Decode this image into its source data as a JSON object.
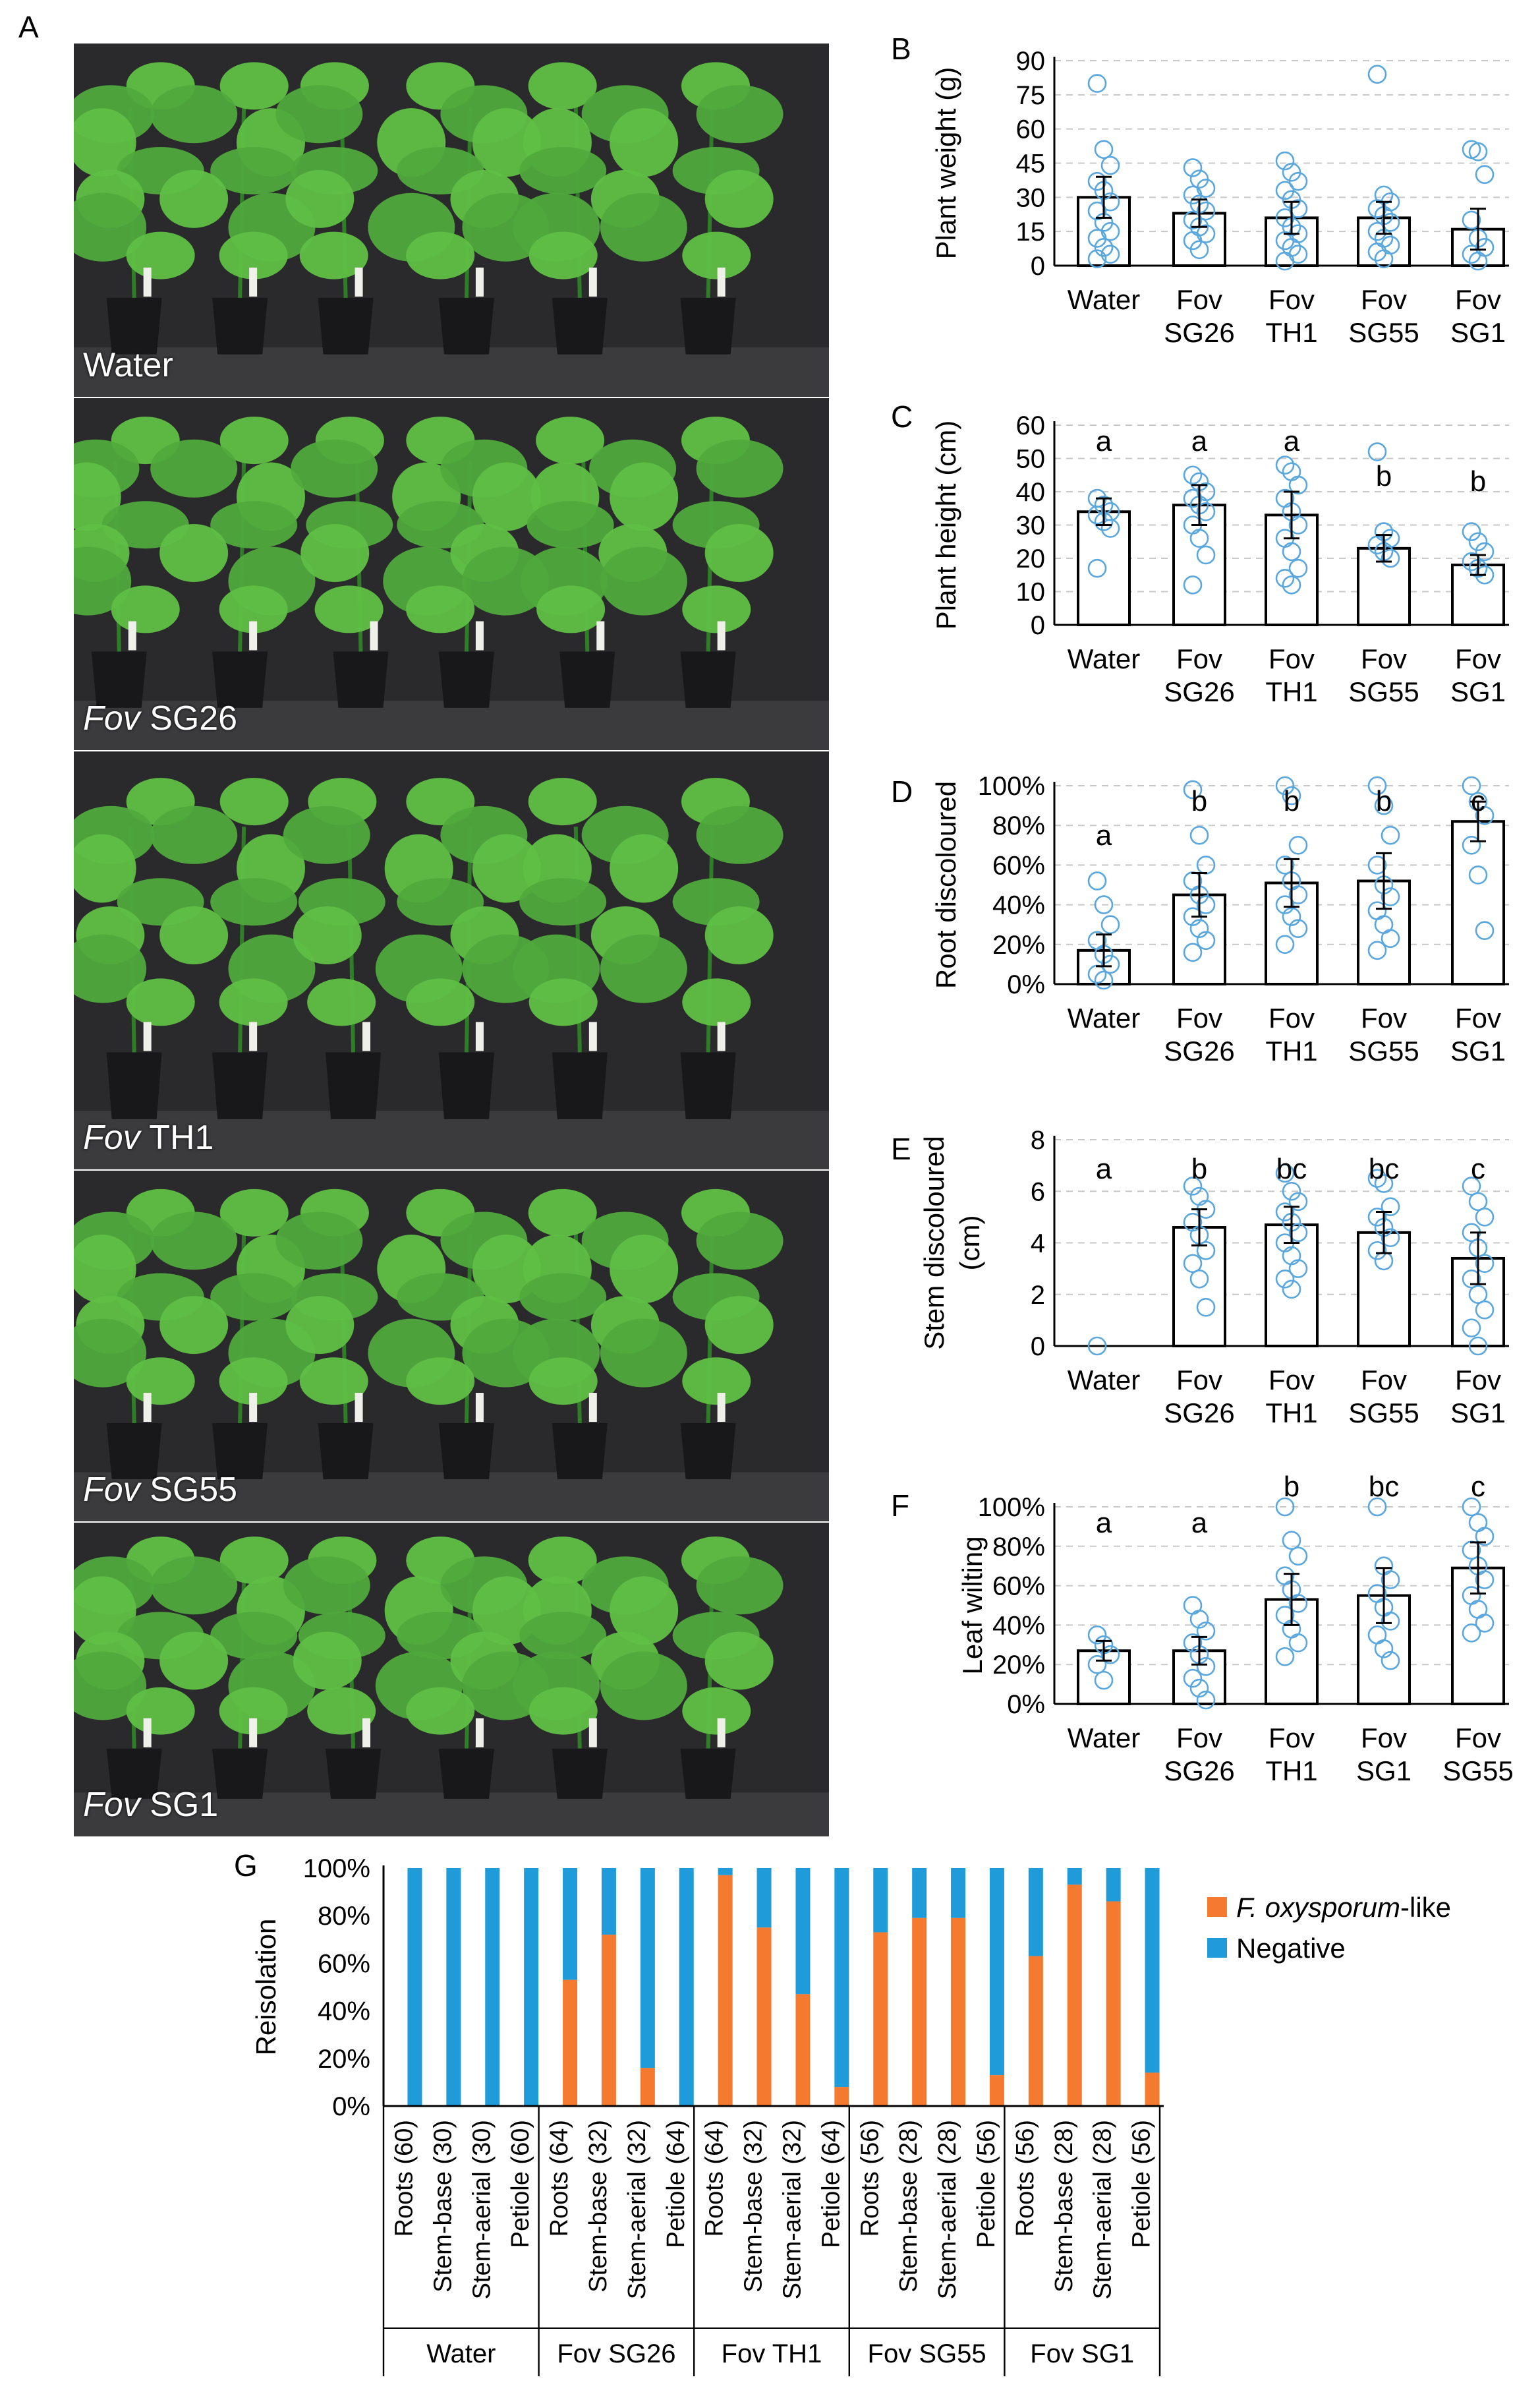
{
  "figure": {
    "panel_a_label": "A",
    "photos": [
      {
        "italic": "",
        "text": "Water"
      },
      {
        "italic": "Fov",
        "text": " SG26"
      },
      {
        "italic": "Fov",
        "text": " TH1"
      },
      {
        "italic": "Fov",
        "text": " SG55"
      },
      {
        "italic": "Fov",
        "text": " SG1"
      }
    ]
  },
  "colors": {
    "marker": "#5aa7de",
    "bar_fill": "#ffffff",
    "bar_edge": "#000000",
    "grid": "#c8c8c8",
    "positive": "#f47a30",
    "negative": "#1f9bd9",
    "photo_bg": "#2a2a2c",
    "plant": "#4fa93c",
    "plant_dark": "#2f7d27",
    "pot": "#18181a",
    "floor": "#dcdcdc"
  },
  "chart_data": [
    {
      "panel": "B",
      "type": "bar",
      "ylabel": "Plant weight (g)",
      "categories": [
        [
          "Water"
        ],
        [
          "Fov",
          "SG26"
        ],
        [
          "Fov",
          "TH1"
        ],
        [
          "Fov",
          "SG55"
        ],
        [
          "Fov",
          "SG1"
        ]
      ],
      "ylim": [
        0,
        90
      ],
      "yticks": [
        "0",
        "15",
        "30",
        "45",
        "60",
        "75",
        "90"
      ],
      "values": [
        30,
        23,
        21,
        21,
        16
      ],
      "err": [
        9,
        6,
        7,
        7,
        9
      ],
      "letters": [
        "",
        "",
        "",
        "",
        ""
      ],
      "points": [
        [
          80,
          51,
          44,
          37,
          33,
          28,
          24,
          19,
          15,
          12,
          8,
          5,
          3
        ],
        [
          43,
          38,
          34,
          31,
          27,
          24,
          20,
          17,
          14,
          11,
          7
        ],
        [
          46,
          41,
          37,
          33,
          29,
          25,
          21,
          17,
          14,
          11,
          8,
          5,
          2
        ],
        [
          84,
          31,
          28,
          25,
          22,
          19,
          15,
          12,
          9,
          6,
          3
        ],
        [
          51,
          50,
          40,
          20,
          12,
          8,
          5,
          2
        ]
      ],
      "grid": true
    },
    {
      "panel": "C",
      "type": "bar",
      "ylabel": "Plant height (cm)",
      "categories": [
        [
          "Water"
        ],
        [
          "Fov",
          "SG26"
        ],
        [
          "Fov",
          "TH1"
        ],
        [
          "Fov",
          "SG55"
        ],
        [
          "Fov",
          "SG1"
        ]
      ],
      "ylim": [
        0,
        60
      ],
      "yticks": [
        "0",
        "10",
        "20",
        "30",
        "40",
        "50",
        "60"
      ],
      "values": [
        34,
        36,
        33,
        23,
        18
      ],
      "err": [
        4,
        6,
        7,
        4,
        3
      ],
      "letters": [
        "a",
        "a",
        "a",
        "b",
        "b"
      ],
      "points": [
        [
          38,
          36,
          34,
          33,
          31,
          29,
          17
        ],
        [
          45,
          43,
          40,
          38,
          36,
          34,
          30,
          26,
          21,
          12
        ],
        [
          48,
          46,
          42,
          38,
          34,
          30,
          26,
          22,
          17,
          14,
          12
        ],
        [
          52,
          28,
          26,
          24,
          22,
          20
        ],
        [
          28,
          25,
          22,
          19,
          17,
          15
        ]
      ],
      "grid": true
    },
    {
      "panel": "D",
      "type": "bar",
      "ylabel": "Root discoloured",
      "categories": [
        [
          "Water"
        ],
        [
          "Fov",
          "SG26"
        ],
        [
          "Fov",
          "TH1"
        ],
        [
          "Fov",
          "SG55"
        ],
        [
          "Fov",
          "SG1"
        ]
      ],
      "ylim": [
        0,
        100
      ],
      "yticks": [
        "0%",
        "20%",
        "40%",
        "60%",
        "80%",
        "100%"
      ],
      "values": [
        17,
        45,
        51,
        52,
        82
      ],
      "err": [
        8,
        11,
        12,
        14,
        10
      ],
      "letters": [
        "a",
        "b",
        "b",
        "b",
        "c"
      ],
      "points": [
        [
          52,
          40,
          30,
          22,
          15,
          10,
          5,
          2
        ],
        [
          98,
          75,
          60,
          52,
          45,
          40,
          34,
          28,
          22,
          16
        ],
        [
          100,
          95,
          70,
          60,
          52,
          45,
          40,
          34,
          28,
          20
        ],
        [
          100,
          90,
          75,
          60,
          50,
          44,
          37,
          30,
          23,
          17
        ],
        [
          100,
          92,
          85,
          70,
          55,
          27
        ]
      ],
      "grid": true
    },
    {
      "panel": "E",
      "type": "bar",
      "ylabel": "Stem discoloured (cm)",
      "categories": [
        [
          "Water"
        ],
        [
          "Fov",
          "SG26"
        ],
        [
          "Fov",
          "TH1"
        ],
        [
          "Fov",
          "SG55"
        ],
        [
          "Fov",
          "SG1"
        ]
      ],
      "ylim": [
        0,
        8
      ],
      "yticks": [
        "0",
        "2",
        "4",
        "6",
        "8"
      ],
      "values": [
        0,
        4.6,
        4.7,
        4.4,
        3.4
      ],
      "err": [
        0,
        0.7,
        0.7,
        0.8,
        1.0
      ],
      "letters": [
        "a",
        "b",
        "bc",
        "bc",
        "c"
      ],
      "points": [
        [
          0
        ],
        [
          6.2,
          5.8,
          5.3,
          4.8,
          4.3,
          3.7,
          3.2,
          2.6,
          1.5
        ],
        [
          6.7,
          6.0,
          5.6,
          5.2,
          4.8,
          4.4,
          4.0,
          3.5,
          3.0,
          2.6,
          2.2
        ],
        [
          6.5,
          6.3,
          5.4,
          5.0,
          4.6,
          4.2,
          3.7,
          3.3
        ],
        [
          6.2,
          5.6,
          5.0,
          4.4,
          3.8,
          3.2,
          2.6,
          2.0,
          1.4,
          0.7,
          0
        ]
      ],
      "grid": true
    },
    {
      "panel": "F",
      "type": "bar",
      "ylabel": "Leaf wilting",
      "categories": [
        [
          "Water"
        ],
        [
          "Fov",
          "SG26"
        ],
        [
          "Fov",
          "TH1"
        ],
        [
          "Fov",
          "SG1"
        ],
        [
          "Fov",
          "SG55"
        ]
      ],
      "ylim": [
        0,
        100
      ],
      "yticks": [
        "0%",
        "20%",
        "40%",
        "60%",
        "80%",
        "100%"
      ],
      "values": [
        27,
        27,
        53,
        55,
        69
      ],
      "err": [
        5,
        7,
        13,
        14,
        13
      ],
      "letters": [
        "a",
        "a",
        "b",
        "bc",
        "c"
      ],
      "points": [
        [
          35,
          30,
          25,
          20,
          12
        ],
        [
          50,
          43,
          37,
          31,
          25,
          19,
          13,
          8,
          2
        ],
        [
          100,
          83,
          75,
          65,
          58,
          51,
          45,
          38,
          31,
          24
        ],
        [
          100,
          70,
          63,
          56,
          49,
          42,
          35,
          28,
          22
        ],
        [
          100,
          92,
          85,
          78,
          70,
          63,
          55,
          48,
          41,
          36
        ]
      ],
      "grid": true
    },
    {
      "panel": "G",
      "type": "bar",
      "stacked": true,
      "ylabel": "Reisolation",
      "ylim": [
        0,
        100
      ],
      "yticks": [
        "0%",
        "20%",
        "40%",
        "60%",
        "80%",
        "100%"
      ],
      "legend": [
        "F. oxysporum-like",
        "Negative"
      ],
      "legend_parts": [
        {
          "italic": "F. oxysporum",
          "text": "-like"
        },
        {
          "italic": "",
          "text": "Negative"
        }
      ],
      "legend_position": "right",
      "groups": [
        "Water",
        "Fov SG26",
        "Fov TH1",
        "Fov SG55",
        "Fov SG1"
      ],
      "categories": [
        "Roots (60)",
        "Stem-base (30)",
        "Stem-aerial (30)",
        "Petiole (60)",
        "Roots (64)",
        "Stem-base (32)",
        "Stem-aerial (32)",
        "Petiole (64)",
        "Roots (64)",
        "Stem-base (32)",
        "Stem-aerial (32)",
        "Petiole (64)",
        "Roots (56)",
        "Stem-base (28)",
        "Stem-aerial (28)",
        "Petiole (56)",
        "Roots (56)",
        "Stem-base (28)",
        "Stem-aerial (28)",
        "Petiole (56)"
      ],
      "series": [
        {
          "name": "F. oxysporum-like",
          "values": [
            0,
            0,
            0,
            0,
            53,
            72,
            16,
            0,
            97,
            75,
            47,
            8,
            73,
            79,
            79,
            13,
            63,
            93,
            86,
            14
          ]
        },
        {
          "name": "Negative",
          "values": [
            100,
            100,
            100,
            100,
            47,
            28,
            84,
            100,
            3,
            25,
            53,
            92,
            27,
            21,
            21,
            87,
            37,
            7,
            14,
            86
          ]
        }
      ]
    }
  ]
}
